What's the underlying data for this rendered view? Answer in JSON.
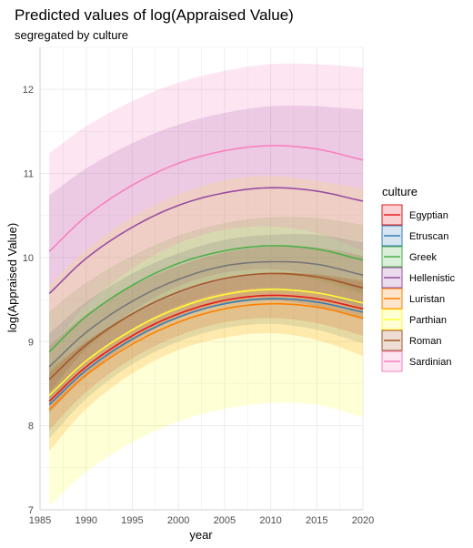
{
  "chart_data": {
    "type": "line",
    "title": "Predicted values of log(Appraised Value)",
    "subtitle": "segregated by culture",
    "xlabel": "year",
    "ylabel": "log(Appraised Value)",
    "xlim": [
      1985,
      2020
    ],
    "ylim": [
      7,
      12.5
    ],
    "x_ticks": [
      1985,
      1990,
      1995,
      2000,
      2005,
      2010,
      2015,
      2020
    ],
    "y_ticks": [
      7,
      8,
      9,
      10,
      11,
      12
    ],
    "grid": true,
    "legend_title": "culture",
    "legend_position": "right",
    "x": [
      1986,
      1990,
      1995,
      2000,
      2005,
      2010,
      2015,
      2020
    ],
    "series": [
      {
        "name": "Egyptian",
        "color": "#E41A1C",
        "values": [
          8.29,
          8.7,
          9.07,
          9.33,
          9.49,
          9.55,
          9.51,
          9.39
        ],
        "lower": [
          7.95,
          8.4,
          8.8,
          9.07,
          9.23,
          9.28,
          9.22,
          9.07
        ],
        "upper": [
          8.63,
          9.0,
          9.34,
          9.59,
          9.75,
          9.82,
          9.8,
          9.71
        ]
      },
      {
        "name": "Etruscan",
        "color": "#377EB8",
        "values": [
          8.25,
          8.66,
          9.03,
          9.29,
          9.45,
          9.51,
          9.47,
          9.35
        ],
        "lower": [
          7.85,
          8.32,
          8.73,
          9.0,
          9.16,
          9.21,
          9.14,
          8.98
        ],
        "upper": [
          8.65,
          9.0,
          9.33,
          9.58,
          9.74,
          9.81,
          9.8,
          9.72
        ]
      },
      {
        "name": "Greek",
        "color": "#4DAF4A",
        "values": [
          8.88,
          9.3,
          9.67,
          9.93,
          10.08,
          10.14,
          10.1,
          9.97
        ],
        "lower": [
          8.4,
          8.9,
          9.32,
          9.6,
          9.75,
          9.8,
          9.73,
          9.55
        ],
        "upper": [
          9.36,
          9.7,
          10.02,
          10.26,
          10.41,
          10.48,
          10.47,
          10.39
        ]
      },
      {
        "name": "Hellenistic",
        "color": "#984EA3",
        "values": [
          9.57,
          9.99,
          10.36,
          10.62,
          10.77,
          10.83,
          10.79,
          10.67
        ],
        "lower": [
          8.4,
          8.92,
          9.36,
          9.66,
          9.82,
          9.86,
          9.78,
          9.58
        ],
        "upper": [
          10.74,
          11.06,
          11.36,
          11.58,
          11.72,
          11.8,
          11.8,
          11.76
        ]
      },
      {
        "name": "Luristan",
        "color": "#FF7F00",
        "values": [
          8.19,
          8.6,
          8.97,
          9.23,
          9.39,
          9.45,
          9.41,
          9.28
        ],
        "lower": [
          7.7,
          8.2,
          8.62,
          8.9,
          9.05,
          9.1,
          9.02,
          8.83
        ],
        "upper": [
          8.68,
          9.0,
          9.32,
          9.56,
          9.73,
          9.8,
          9.8,
          9.73
        ]
      },
      {
        "name": "Parthian",
        "color": "#FFFF33",
        "values": [
          8.36,
          8.77,
          9.14,
          9.4,
          9.56,
          9.62,
          9.58,
          9.46
        ],
        "lower": [
          7.05,
          7.45,
          7.8,
          8.05,
          8.2,
          8.27,
          8.25,
          8.1
        ],
        "upper": [
          9.67,
          10.09,
          10.48,
          10.75,
          10.92,
          10.97,
          10.91,
          10.82
        ]
      },
      {
        "name": "Roman",
        "color": "#A65628",
        "values": [
          8.55,
          8.96,
          9.33,
          9.59,
          9.75,
          9.81,
          9.77,
          9.64
        ],
        "lower": [
          8.15,
          8.6,
          9.0,
          9.28,
          9.44,
          9.49,
          9.42,
          9.26
        ],
        "upper": [
          8.95,
          9.32,
          9.66,
          9.9,
          10.06,
          10.13,
          10.12,
          10.02
        ]
      },
      {
        "name": "Sardinian",
        "color": "#F781BF",
        "values": [
          10.07,
          10.49,
          10.86,
          11.12,
          11.27,
          11.33,
          11.29,
          11.16
        ],
        "lower": [
          8.9,
          9.43,
          9.87,
          10.17,
          10.33,
          10.37,
          10.29,
          10.08
        ],
        "upper": [
          11.24,
          11.56,
          11.86,
          12.08,
          12.22,
          12.3,
          12.3,
          12.26
        ]
      },
      {
        "name": "",
        "color": "#777777",
        "legend": false,
        "values": [
          8.7,
          9.11,
          9.48,
          9.74,
          9.9,
          9.95,
          9.92,
          9.79
        ],
        "lower": [
          8.3,
          8.75,
          9.15,
          9.43,
          9.59,
          9.64,
          9.57,
          9.4
        ],
        "upper": [
          9.1,
          9.47,
          9.81,
          10.05,
          10.21,
          10.27,
          10.27,
          10.18
        ]
      }
    ]
  }
}
